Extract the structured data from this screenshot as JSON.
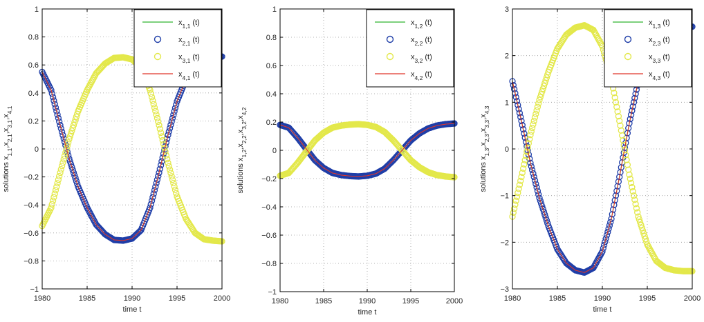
{
  "chart_data": [
    {
      "type": "line",
      "xlabel": "time t",
      "ylabel": "solutions x_{1,1},x_{2,1},x_{3,1},x_{4,1}",
      "xlim": [
        1980,
        2000
      ],
      "ylim": [
        -1,
        1
      ],
      "xticks": [
        1980,
        1985,
        1990,
        1995,
        2000
      ],
      "yticks": [
        -1,
        -0.8,
        -0.6,
        -0.4,
        -0.2,
        0,
        0.2,
        0.4,
        0.6,
        0.8,
        1
      ],
      "grid": true,
      "legend_position": "top-right",
      "x": [
        1980,
        1981,
        1982,
        1983,
        1984,
        1985,
        1986,
        1987,
        1988,
        1989,
        1990,
        1991,
        1992,
        1993,
        1994,
        1995,
        1996,
        1997,
        1998,
        1999,
        2000
      ],
      "series": [
        {
          "name": "x",
          "sub": "1,1",
          "suffix": " (t)",
          "style": "line",
          "color": "#2db52d",
          "values": [
            0.55,
            0.42,
            0.17,
            -0.07,
            -0.27,
            -0.42,
            -0.54,
            -0.61,
            -0.65,
            -0.655,
            -0.64,
            -0.58,
            -0.42,
            -0.17,
            0.1,
            0.34,
            0.5,
            0.6,
            0.645,
            0.655,
            0.66
          ]
        },
        {
          "name": "x",
          "sub": "2,1",
          "suffix": " (t)",
          "style": "circle",
          "color": "#1f3ea8",
          "values": [
            0.55,
            0.42,
            0.17,
            -0.07,
            -0.27,
            -0.42,
            -0.54,
            -0.61,
            -0.65,
            -0.655,
            -0.64,
            -0.58,
            -0.42,
            -0.17,
            0.1,
            0.34,
            0.5,
            0.6,
            0.645,
            0.655,
            0.66
          ]
        },
        {
          "name": "x",
          "sub": "3,1",
          "suffix": " (t)",
          "style": "circle",
          "color": "#e3e84a",
          "values": [
            -0.55,
            -0.42,
            -0.17,
            0.07,
            0.27,
            0.42,
            0.54,
            0.61,
            0.65,
            0.655,
            0.64,
            0.58,
            0.42,
            0.17,
            -0.1,
            -0.34,
            -0.5,
            -0.6,
            -0.645,
            -0.655,
            -0.66
          ]
        },
        {
          "name": "x",
          "sub": "4,1",
          "suffix": " (t)",
          "style": "line",
          "color": "#e0362b",
          "values": [
            0.55,
            0.42,
            0.17,
            -0.07,
            -0.27,
            -0.42,
            -0.54,
            -0.61,
            -0.65,
            -0.655,
            -0.64,
            -0.58,
            -0.42,
            -0.17,
            0.1,
            0.34,
            0.5,
            0.6,
            0.645,
            0.655,
            0.66
          ]
        }
      ]
    },
    {
      "type": "line",
      "xlabel": "time t",
      "ylabel": "solutions x_{1,2},x_{2,2},x_{3,2},x_{4,2}",
      "xlim": [
        1980,
        2000
      ],
      "ylim": [
        -1,
        1
      ],
      "xticks": [
        1980,
        1985,
        1990,
        1995,
        2000
      ],
      "yticks": [
        -1,
        -0.8,
        -0.6,
        -0.4,
        -0.2,
        0,
        0.2,
        0.4,
        0.6,
        0.8,
        1
      ],
      "grid": true,
      "legend_position": "top-right",
      "x": [
        1980,
        1981,
        1982,
        1983,
        1984,
        1985,
        1986,
        1987,
        1988,
        1989,
        1990,
        1991,
        1992,
        1993,
        1994,
        1995,
        1996,
        1997,
        1998,
        1999,
        2000
      ],
      "series": [
        {
          "name": "x",
          "sub": "1,2",
          "suffix": " (t)",
          "style": "line",
          "color": "#2db52d",
          "values": [
            0.18,
            0.16,
            0.09,
            0.01,
            -0.07,
            -0.125,
            -0.16,
            -0.175,
            -0.182,
            -0.185,
            -0.18,
            -0.165,
            -0.13,
            -0.07,
            0.0,
            0.07,
            0.12,
            0.155,
            0.175,
            0.185,
            0.19
          ]
        },
        {
          "name": "x",
          "sub": "2,2",
          "suffix": " (t)",
          "style": "circle",
          "color": "#1f3ea8",
          "values": [
            0.18,
            0.16,
            0.09,
            0.01,
            -0.07,
            -0.125,
            -0.16,
            -0.175,
            -0.182,
            -0.185,
            -0.18,
            -0.165,
            -0.13,
            -0.07,
            0.0,
            0.07,
            0.12,
            0.155,
            0.175,
            0.185,
            0.19
          ]
        },
        {
          "name": "x",
          "sub": "3,2",
          "suffix": " (t)",
          "style": "circle",
          "color": "#e3e84a",
          "values": [
            -0.18,
            -0.16,
            -0.09,
            -0.01,
            0.07,
            0.125,
            0.16,
            0.175,
            0.182,
            0.185,
            0.18,
            0.165,
            0.13,
            0.07,
            0.0,
            -0.07,
            -0.12,
            -0.155,
            -0.175,
            -0.185,
            -0.19
          ]
        },
        {
          "name": "x",
          "sub": "4,2",
          "suffix": " (t)",
          "style": "line",
          "color": "#e0362b",
          "values": [
            0.18,
            0.16,
            0.09,
            0.01,
            -0.07,
            -0.125,
            -0.16,
            -0.175,
            -0.182,
            -0.185,
            -0.18,
            -0.165,
            -0.13,
            -0.07,
            0.0,
            0.07,
            0.12,
            0.155,
            0.175,
            0.185,
            0.19
          ]
        }
      ]
    },
    {
      "type": "line",
      "xlabel": "time t",
      "ylabel": "solutions x_{1,3},x_{2,3},x_{3,3},x_{4,3}",
      "xlim": [
        1980,
        2000
      ],
      "ylim": [
        -3,
        3
      ],
      "xticks": [
        1980,
        1985,
        1990,
        1995,
        2000
      ],
      "yticks": [
        -3,
        -2,
        -1,
        0,
        1,
        2,
        3
      ],
      "grid": true,
      "legend_position": "top-right",
      "x": [
        1980,
        1981,
        1982,
        1983,
        1984,
        1985,
        1986,
        1987,
        1988,
        1989,
        1990,
        1991,
        1992,
        1993,
        1994,
        1995,
        1996,
        1997,
        1998,
        1999,
        2000
      ],
      "series": [
        {
          "name": "x",
          "sub": "1,3",
          "suffix": " (t)",
          "style": "line",
          "color": "#2db52d",
          "values": [
            1.45,
            0.6,
            -0.3,
            -1.05,
            -1.65,
            -2.15,
            -2.45,
            -2.6,
            -2.65,
            -2.55,
            -2.2,
            -1.5,
            -0.5,
            0.55,
            1.45,
            2.05,
            2.4,
            2.55,
            2.6,
            2.62,
            2.62
          ]
        },
        {
          "name": "x",
          "sub": "2,3",
          "suffix": " (t)",
          "style": "circle",
          "color": "#1f3ea8",
          "values": [
            1.45,
            0.6,
            -0.3,
            -1.05,
            -1.65,
            -2.15,
            -2.45,
            -2.6,
            -2.65,
            -2.55,
            -2.2,
            -1.5,
            -0.5,
            0.55,
            1.45,
            2.05,
            2.4,
            2.55,
            2.6,
            2.62,
            2.62
          ]
        },
        {
          "name": "x",
          "sub": "3,3",
          "suffix": " (t)",
          "style": "circle",
          "color": "#e3e84a",
          "values": [
            -1.45,
            -0.6,
            0.3,
            1.05,
            1.65,
            2.15,
            2.45,
            2.6,
            2.65,
            2.55,
            2.2,
            1.5,
            0.5,
            -0.55,
            -1.45,
            -2.05,
            -2.4,
            -2.55,
            -2.6,
            -2.62,
            -2.62
          ]
        },
        {
          "name": "x",
          "sub": "4,3",
          "suffix": " (t)",
          "style": "line",
          "color": "#e0362b",
          "values": [
            1.45,
            0.6,
            -0.3,
            -1.05,
            -1.65,
            -2.15,
            -2.45,
            -2.6,
            -2.65,
            -2.55,
            -2.2,
            -1.5,
            -0.5,
            0.55,
            1.45,
            2.05,
            2.4,
            2.55,
            2.6,
            2.62,
            2.62
          ]
        }
      ]
    }
  ]
}
